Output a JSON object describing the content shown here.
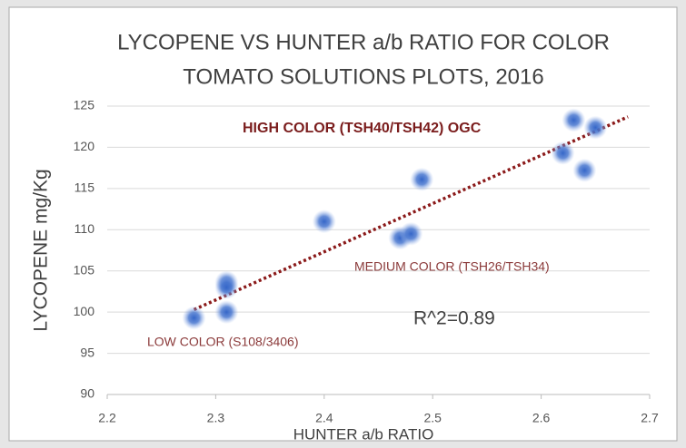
{
  "chart_data": {
    "type": "scatter",
    "title": "LYCOPENE VS HUNTER a/b RATIO FOR COLOR",
    "subtitle": "TOMATO SOLUTIONS PLOTS, 2016",
    "x_label": "HUNTER a/b RATIO",
    "y_label": "LYCOPENE mg/Kg",
    "x": [
      2.28,
      2.31,
      2.31,
      2.31,
      2.4,
      2.47,
      2.48,
      2.49,
      2.62,
      2.63,
      2.64,
      2.65
    ],
    "values": [
      99.3,
      103.6,
      103.0,
      100.0,
      111.0,
      109.0,
      109.5,
      116.1,
      119.3,
      123.3,
      117.2,
      122.4
    ],
    "color": "#4a78d0",
    "trendline": {
      "x": [
        2.28,
        2.68
      ],
      "y": [
        100.3,
        123.7
      ],
      "color": "#8b1a1a"
    },
    "annotations": [
      "HIGH COLOR (TSH40/TSH42) OGC",
      "MEDIUM COLOR (TSH26/TSH34)",
      "R^2=0.89",
      "LOW COLOR (S108/3406)"
    ],
    "xlim": [
      2.2,
      2.7
    ],
    "xticks": [
      2.2,
      2.3,
      2.4,
      2.5,
      2.6,
      2.7
    ],
    "ylim": [
      90,
      125
    ],
    "yticks": [
      90,
      95,
      100,
      105,
      110,
      115,
      120,
      125
    ],
    "grid": true
  }
}
